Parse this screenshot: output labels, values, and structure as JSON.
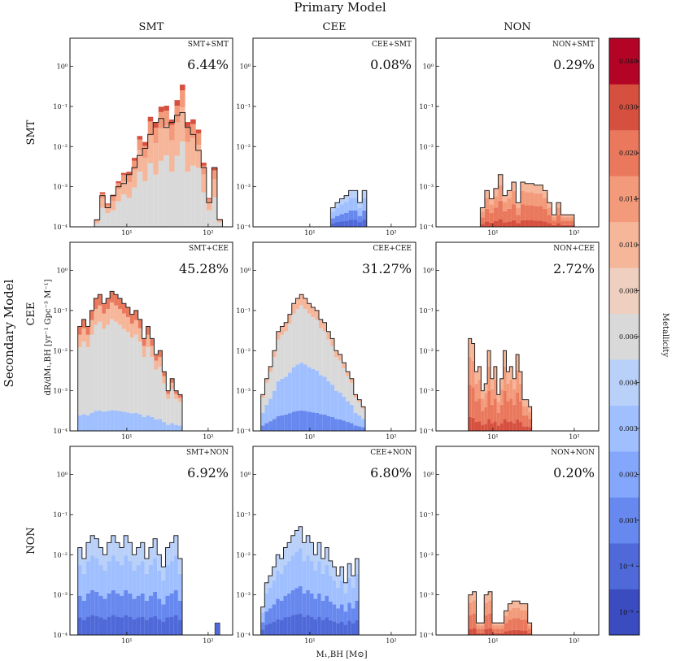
{
  "figure": {
    "title": "Primary Model",
    "row_group_label": "Secondary Model",
    "y_axis_label": "dR/dM₁,BH [yr⁻¹ Gpc⁻³ M⁻¹]",
    "x_axis_label": "M₁,BH [M⊙]"
  },
  "columns": [
    "SMT",
    "CEE",
    "NON"
  ],
  "rows": [
    "SMT",
    "CEE",
    "NON"
  ],
  "colorbar": {
    "label": "Metallicity",
    "ticks": [
      "10⁻⁵",
      "10⁻⁴",
      "0.001",
      "0.002",
      "0.003",
      "0.004",
      "0.006",
      "0.008",
      "0.010",
      "0.014",
      "0.020",
      "0.030",
      "0.040"
    ],
    "colors": [
      "#3b4cc0",
      "#4f69d9",
      "#6788ee",
      "#84a7fc",
      "#9fbfff",
      "#b9d0f9",
      "#d9d9d9",
      "#efcfbf",
      "#f5b69a",
      "#f39a7b",
      "#e9785d",
      "#d6503f",
      "#b40426"
    ]
  },
  "chart_data": [
    {
      "type": "histogram",
      "panel": "SMT+SMT",
      "label": "SMT+SMT",
      "percent": "6.44%",
      "xscale": "log",
      "yscale": "log",
      "xlim": [
        2,
        200
      ],
      "ylim": [
        0.0001,
        5
      ],
      "bins": {
        "start": 4,
        "end": 150
      },
      "totals": [
        0.00015,
        0.0006,
        0.0003,
        0.0006,
        0.001,
        0.0012,
        0.002,
        0.003,
        0.006,
        0.009,
        0.02,
        0.04,
        0.05,
        0.03,
        0.04,
        0.06,
        0.07,
        0.03,
        0.02,
        0.008,
        0.003,
        0.0004,
        0.003,
        0.00015
      ],
      "dominant": "high-Z red / neutral, blue tail at high mass"
    },
    {
      "type": "histogram",
      "panel": "CEE+SMT",
      "label": "CEE+SMT",
      "percent": "0.08%",
      "xscale": "log",
      "yscale": "log",
      "xlim": [
        2,
        200
      ],
      "ylim": [
        0.0001,
        5
      ],
      "bins": {
        "start": 18,
        "end": 50
      },
      "totals": [
        0.0003,
        0.0004,
        0.0005,
        0.0006,
        0.0008,
        0.0008,
        0.0004,
        0.0008
      ],
      "dominant": "blue"
    },
    {
      "type": "histogram",
      "panel": "NON+SMT",
      "label": "NON+SMT",
      "percent": "0.29%",
      "xscale": "log",
      "yscale": "log",
      "xlim": [
        2,
        200
      ],
      "ylim": [
        0.0001,
        5
      ],
      "bins": {
        "start": 7,
        "end": 100
      },
      "totals": [
        0.0003,
        0.0008,
        0.0005,
        0.0009,
        0.002,
        0.0006,
        0.0008,
        0.0013,
        0.0004,
        0.0013,
        0.0012,
        0.0012,
        0.0011,
        0.0011,
        0.0008,
        0.0004,
        0.0002,
        0.0004,
        0.0002,
        0.0002,
        0.0002
      ],
      "dominant": "red"
    },
    {
      "type": "histogram",
      "panel": "SMT+CEE",
      "label": "SMT+CEE",
      "percent": "45.28%",
      "xscale": "log",
      "yscale": "log",
      "xlim": [
        2,
        200
      ],
      "ylim": [
        0.0001,
        5
      ],
      "bins": {
        "start": 2.5,
        "end": 48
      },
      "totals": [
        0.04,
        0.06,
        0.04,
        0.1,
        0.2,
        0.25,
        0.15,
        0.2,
        0.3,
        0.25,
        0.2,
        0.15,
        0.12,
        0.08,
        0.1,
        0.06,
        0.02,
        0.04,
        0.02,
        0.008,
        0.01,
        0.003,
        0.001,
        0.002,
        0.001,
        0.0008
      ],
      "dominant": "neutral grey with red top, blue tail"
    },
    {
      "type": "histogram",
      "panel": "CEE+CEE",
      "label": "CEE+CEE",
      "percent": "31.27%",
      "xscale": "log",
      "yscale": "log",
      "xlim": [
        2,
        200
      ],
      "ylim": [
        0.0001,
        5
      ],
      "bins": {
        "start": 2.5,
        "end": 48
      },
      "totals": [
        0.0008,
        0.002,
        0.004,
        0.01,
        0.03,
        0.04,
        0.05,
        0.08,
        0.15,
        0.2,
        0.25,
        0.2,
        0.15,
        0.12,
        0.1,
        0.06,
        0.05,
        0.03,
        0.02,
        0.01,
        0.008,
        0.005,
        0.003,
        0.002,
        0.0008,
        0.0006,
        0.0004
      ],
      "dominant": "neutral grey and blue"
    },
    {
      "type": "histogram",
      "panel": "NON+CEE",
      "label": "NON+CEE",
      "percent": "2.72%",
      "xscale": "log",
      "yscale": "log",
      "xlim": [
        2,
        200
      ],
      "ylim": [
        0.0001,
        5
      ],
      "bins": {
        "start": 5,
        "end": 30
      },
      "totals": [
        0.02,
        0.015,
        0.003,
        0.004,
        0.001,
        0.0015,
        0.01,
        0.002,
        0.004,
        0.0008,
        0.002,
        0.01,
        0.003,
        0.004,
        0.002,
        0.008,
        0.003,
        0.0006,
        0.0006,
        0.0004
      ],
      "dominant": "red"
    },
    {
      "type": "histogram",
      "panel": "SMT+NON",
      "label": "SMT+NON",
      "percent": "6.92%",
      "xscale": "log",
      "yscale": "log",
      "xlim": [
        2,
        200
      ],
      "ylim": [
        0.0001,
        5
      ],
      "bins": {
        "start": 2.5,
        "end": 48
      },
      "totals": [
        0.015,
        0.008,
        0.02,
        0.03,
        0.025,
        0.015,
        0.01,
        0.02,
        0.03,
        0.02,
        0.015,
        0.03,
        0.02,
        0.01,
        0.015,
        0.02,
        0.008,
        0.015,
        0.025,
        0.01,
        0.005,
        0.015,
        0.02,
        0.03,
        0.008
      ],
      "dominant": "blue",
      "extra": {
        "x": 130,
        "y": 0.0002
      }
    },
    {
      "type": "histogram",
      "panel": "CEE+NON",
      "label": "CEE+NON",
      "percent": "6.80%",
      "xscale": "log",
      "yscale": "log",
      "xlim": [
        2,
        200
      ],
      "ylim": [
        0.0001,
        5
      ],
      "bins": {
        "start": 2.5,
        "end": 40
      },
      "totals": [
        0.0005,
        0.002,
        0.003,
        0.005,
        0.01,
        0.008,
        0.015,
        0.02,
        0.03,
        0.04,
        0.05,
        0.02,
        0.03,
        0.02,
        0.01,
        0.02,
        0.008,
        0.015,
        0.007,
        0.005,
        0.003,
        0.005,
        0.002,
        0.006,
        0.003,
        0.008
      ],
      "dominant": "blue"
    },
    {
      "type": "histogram",
      "panel": "NON+NON",
      "label": "NON+NON",
      "percent": "0.20%",
      "xscale": "log",
      "yscale": "log",
      "xlim": [
        2,
        200
      ],
      "ylim": [
        0.0001,
        5
      ],
      "bins": {
        "start": 5,
        "end": 30
      },
      "totals": [
        0.001,
        0.0012,
        0.0002,
        0.0002,
        0.001,
        0.0012,
        0.0002,
        0.0002,
        0.0002,
        0.0004,
        0.0006,
        0.0007,
        0.0007,
        0.0006,
        0.0006,
        0.0002
      ],
      "dominant": "red"
    }
  ]
}
